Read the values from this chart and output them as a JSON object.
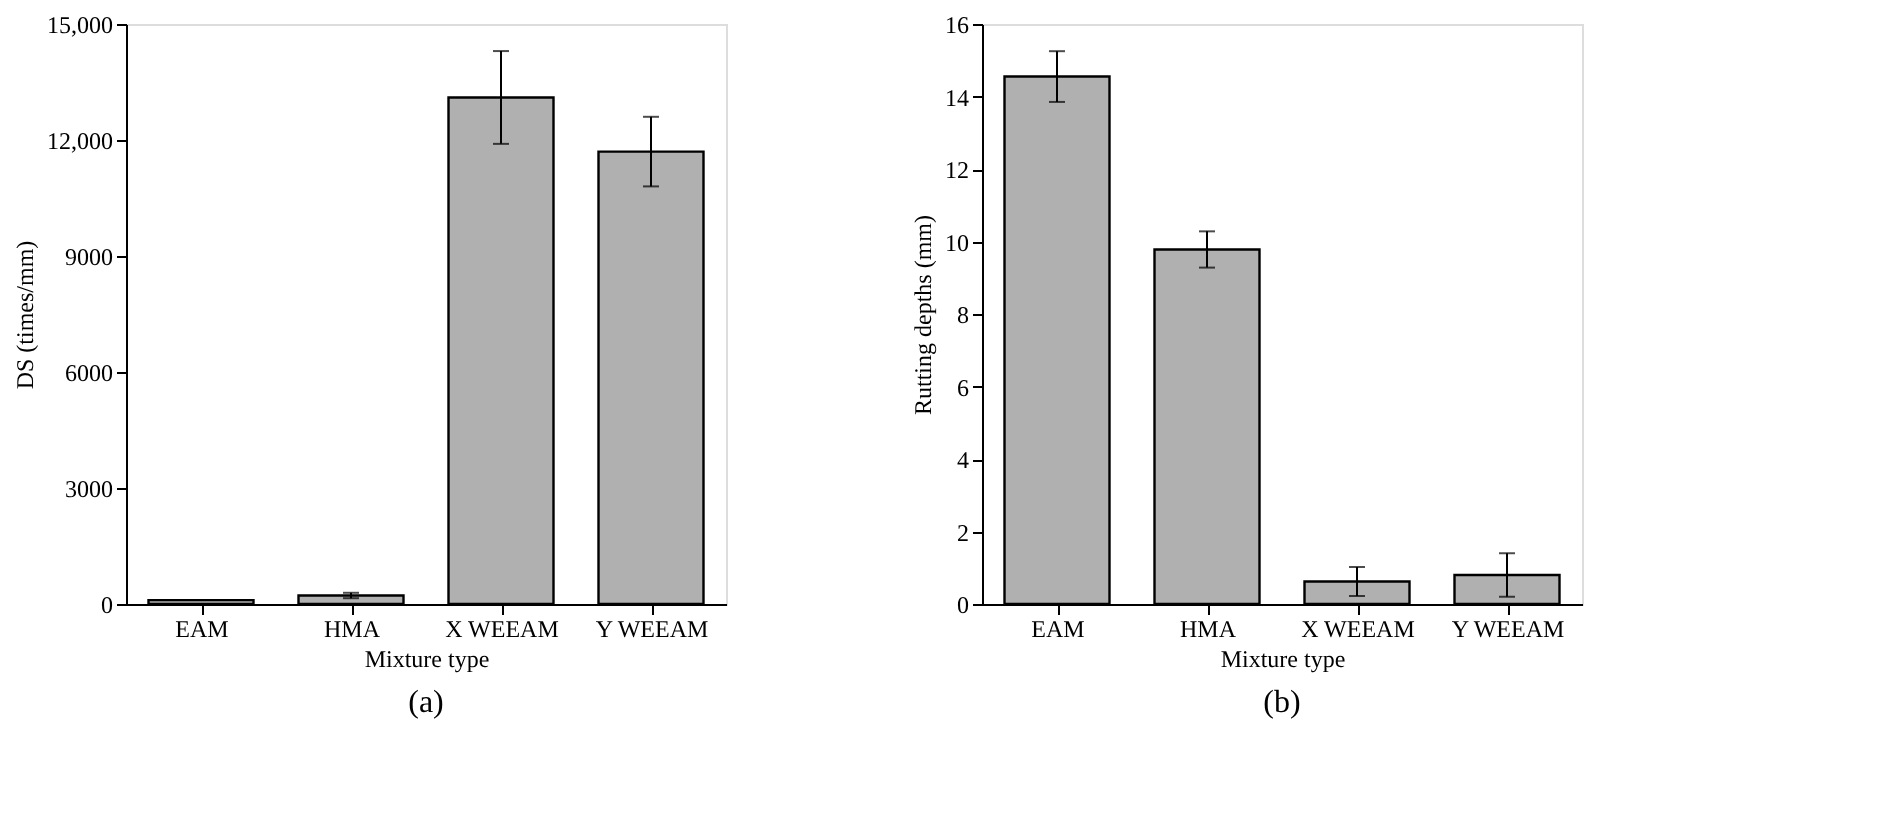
{
  "chart_data": [
    {
      "type": "bar",
      "xlabel": "Mixture type",
      "ylabel": "DS (times/mm)",
      "categories": [
        "EAM",
        "HMA",
        "X WEEAM",
        "Y WEEAM"
      ],
      "series": [
        {
          "color": "#b0b0b0",
          "values": [
            100,
            220,
            13100,
            11700
          ],
          "errors": [
            null,
            70,
            1200,
            900
          ]
        }
      ],
      "ylim": [
        0,
        15000
      ],
      "yticks": [
        0,
        3000,
        6000,
        9000,
        {
          "value": 12000,
          "label": "12,000"
        },
        {
          "value": 15000,
          "label": "15,000"
        }
      ],
      "grid": false,
      "annotations": [
        "(a)"
      ]
    },
    {
      "type": "bar",
      "xlabel": "Mixture type",
      "ylabel": "Rutting depths (mm)",
      "categories": [
        "EAM",
        "HMA",
        "X WEEAM",
        "Y WEEAM"
      ],
      "series": [
        {
          "color": "#b0b0b0",
          "values": [
            14.55,
            9.78,
            0.62,
            0.8
          ],
          "errors": [
            0.7,
            0.5,
            0.4,
            0.6
          ]
        }
      ],
      "ylim": [
        0,
        16
      ],
      "yticks": [
        0,
        2,
        4,
        6,
        8,
        10,
        12,
        14,
        16
      ],
      "grid": false,
      "annotations": [
        "(b)"
      ]
    }
  ]
}
